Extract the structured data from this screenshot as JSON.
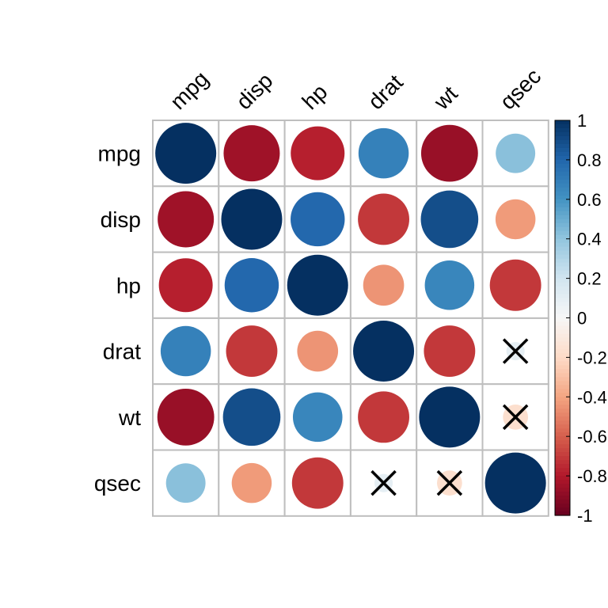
{
  "chart_data": {
    "type": "heatmap",
    "variables": [
      "mpg",
      "disp",
      "hp",
      "drat",
      "wt",
      "qsec"
    ],
    "matrix": [
      [
        1.0,
        -0.85,
        -0.78,
        0.68,
        -0.87,
        0.42
      ],
      [
        -0.85,
        1.0,
        0.79,
        -0.71,
        0.89,
        -0.43
      ],
      [
        -0.78,
        0.79,
        1.0,
        -0.45,
        0.66,
        -0.71
      ],
      [
        0.68,
        -0.71,
        -0.45,
        1.0,
        -0.71,
        0.09
      ],
      [
        -0.87,
        0.89,
        0.66,
        -0.71,
        1.0,
        -0.17
      ],
      [
        0.42,
        -0.43,
        -0.71,
        0.09,
        -0.17,
        1.0
      ]
    ],
    "insignificant": [
      [
        3,
        5
      ],
      [
        4,
        5
      ],
      [
        5,
        3
      ],
      [
        5,
        4
      ]
    ],
    "colorbar": {
      "range": [
        -1,
        1
      ],
      "ticks": [
        "1",
        "0.8",
        "0.6",
        "0.4",
        "0.2",
        "0",
        "-0.2",
        "-0.4",
        "-0.6",
        "-0.8",
        "-1"
      ],
      "negative_color": "#67001F",
      "zero_color": "#F7F7F7",
      "positive_color": "#053061"
    },
    "grid_color": "#BEBEBE",
    "marker": "circle",
    "insignificant_marker": "cross"
  }
}
